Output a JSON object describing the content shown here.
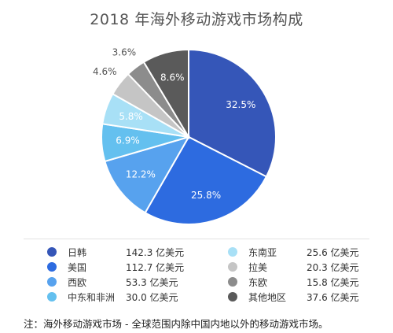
{
  "title": "2018 年海外移动游戏市场构成",
  "footnote": "注：海外移动游戏市场 - 全球范围内除中国内地以外的移动游戏市场。",
  "chart_data": {
    "type": "pie",
    "title": "2018 年海外移动游戏市场构成",
    "unit": "亿美元",
    "slices": [
      {
        "name": "日韩",
        "value": 142.3,
        "value_label": "142.3 亿美元",
        "percent": 32.5,
        "percent_label": "32.5%",
        "color": "#3556b8"
      },
      {
        "name": "美国",
        "value": 112.7,
        "value_label": "112.7 亿美元",
        "percent": 25.8,
        "percent_label": "25.8%",
        "color": "#2d6be0"
      },
      {
        "name": "西欧",
        "value": 53.3,
        "value_label": "53.3 亿美元",
        "percent": 12.2,
        "percent_label": "12.2%",
        "color": "#57a2ee"
      },
      {
        "name": "中东和非洲",
        "value": 30.0,
        "value_label": "30.0 亿美元",
        "percent": 6.9,
        "percent_label": "6.9%",
        "color": "#64c0ef"
      },
      {
        "name": "东南亚",
        "value": 25.6,
        "value_label": "25.6 亿美元",
        "percent": 5.8,
        "percent_label": "5.8%",
        "color": "#a8e0f6"
      },
      {
        "name": "拉美",
        "value": 20.3,
        "value_label": "20.3 亿美元",
        "percent": 4.6,
        "percent_label": "4.6%",
        "color": "#c5c5c5"
      },
      {
        "name": "东欧",
        "value": 15.8,
        "value_label": "15.8 亿美元",
        "percent": 3.6,
        "percent_label": "3.6%",
        "color": "#8c8c8c"
      },
      {
        "name": "其他地区",
        "value": 37.6,
        "value_label": "37.6 亿美元",
        "percent": 8.6,
        "percent_label": "8.6%",
        "color": "#5a5a5a"
      }
    ],
    "legend_placement": "bottom"
  }
}
